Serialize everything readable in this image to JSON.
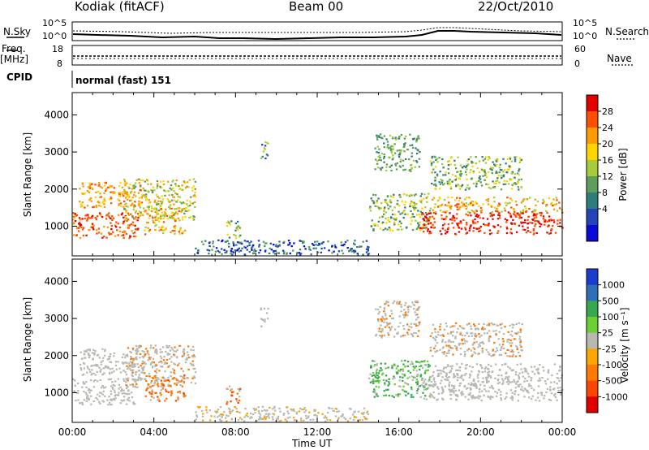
{
  "header": {
    "station": "Kodiak (fitACF)",
    "beam": "Beam 00",
    "date": "22/Oct/2010"
  },
  "top_panels": {
    "nsky_label": "N.Sky",
    "nsearch_label": "N.Search",
    "left_ticks": [
      "10^5",
      "10^0"
    ],
    "right_ticks": [
      "10^5",
      "10^0"
    ],
    "freq_label_line1": "Freq.",
    "freq_label_line2": "[MHz]",
    "freq_ticks": [
      "18",
      "8"
    ],
    "nave_label": "Nave",
    "nave_ticks": [
      "60",
      "0"
    ],
    "cpid_label": "CPID",
    "cpid_text": "normal (fast) 151"
  },
  "colors": {
    "background": "#ffffff",
    "axis": "#000000",
    "ground_scatter": "#b9b9b2"
  },
  "chart_data": [
    {
      "type": "heatmap",
      "name": "power",
      "ylabel": "Slant Range [km]",
      "ylim": [
        200,
        4600
      ],
      "yticks": [
        1000,
        2000,
        3000,
        4000
      ],
      "xlim": [
        0,
        24
      ],
      "colorbar": {
        "label": "Power [dB]",
        "ticks": [
          "28",
          "24",
          "20",
          "16",
          "12",
          "8",
          "4"
        ],
        "colors": [
          "#e50000",
          "#ff4f00",
          "#ff9a00",
          "#ffd500",
          "#a7cc3a",
          "#5d9e5a",
          "#2d7e7a",
          "#2245b8",
          "#0a0ad6"
        ]
      }
    },
    {
      "type": "heatmap",
      "name": "velocity",
      "ylabel": "Slant Range [km]",
      "ylim": [
        200,
        4600
      ],
      "yticks": [
        1000,
        2000,
        3000,
        4000
      ],
      "xlim": [
        0,
        24
      ],
      "xlabel": "Time UT",
      "xticks": [
        "00:00",
        "04:00",
        "08:00",
        "12:00",
        "16:00",
        "20:00",
        "00:00"
      ],
      "colorbar": {
        "label": "Velocity [m s⁻¹]",
        "ticks": [
          "1000",
          "500",
          "100",
          "25",
          "-25",
          "-100",
          "-500",
          "-1000"
        ],
        "colors": [
          "#1c3cd0",
          "#2f6eb8",
          "#37a850",
          "#6ccf35",
          "#b9b9b2",
          "#ffa500",
          "#ff7a00",
          "#ff4500",
          "#e00000"
        ]
      }
    }
  ]
}
